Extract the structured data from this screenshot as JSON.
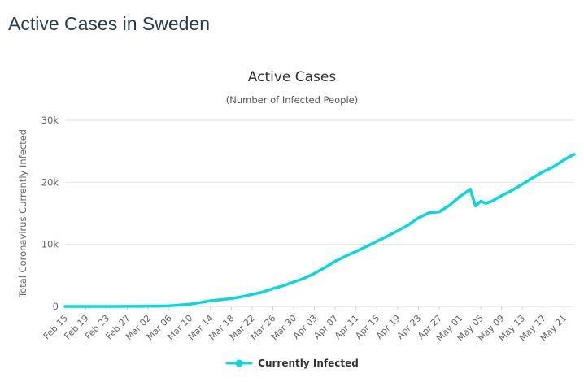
{
  "page": {
    "title": "Active Cases in Sweden"
  },
  "chart": {
    "title": "Active Cases",
    "subtitle": "(Number of Infected People)",
    "y_axis_title": "Total Coronavirus Currently Infected",
    "legend_label": "Currently Infected",
    "colors": {
      "series": "#08d8de",
      "grid": "#e6e6e6",
      "axis_line": "#ccd6eb",
      "axis_text": "#666666",
      "page_title_text": "#2b3b4c",
      "title_text": "#333333",
      "legend_text": "#333333"
    }
  },
  "chart_data": {
    "type": "line",
    "title": "Active Cases",
    "subtitle": "(Number of Infected People)",
    "xlabel": "",
    "ylabel": "Total Coronavirus Currently Infected",
    "ylim": [
      0,
      30000
    ],
    "grid": true,
    "legend_position": "bottom",
    "ytick_values": [
      0,
      10000,
      20000,
      30000
    ],
    "ytick_labels": [
      "0",
      "10k",
      "20k",
      "30k"
    ],
    "xtick_days": [
      0,
      4,
      8,
      12,
      16,
      20,
      24,
      28,
      32,
      36,
      40,
      44,
      48,
      52,
      56,
      60,
      64,
      68,
      72,
      76,
      80,
      84,
      88,
      92,
      96
    ],
    "xtick_labels": [
      "Feb 15",
      "Feb 19",
      "Feb 23",
      "Feb 27",
      "Mar 02",
      "Mar 06",
      "Mar 10",
      "Mar 14",
      "Mar 18",
      "Mar 22",
      "Mar 26",
      "Mar 30",
      "Apr 03",
      "Apr 07",
      "Apr 11",
      "Apr 15",
      "Apr 19",
      "Apr 23",
      "Apr 27",
      "May 01",
      "May 05",
      "May 09",
      "May 13",
      "May 17",
      "May 21"
    ],
    "x_max_day": 98,
    "series": [
      {
        "name": "Currently Infected",
        "color": "#08d8de",
        "days": [
          0,
          2,
          4,
          6,
          8,
          10,
          12,
          14,
          16,
          18,
          20,
          22,
          24,
          26,
          28,
          30,
          32,
          34,
          36,
          38,
          40,
          42,
          44,
          46,
          48,
          50,
          52,
          54,
          56,
          58,
          60,
          62,
          64,
          66,
          68,
          70,
          71,
          72,
          74,
          76,
          77,
          78,
          79,
          80,
          81,
          82,
          84,
          86,
          88,
          90,
          92,
          94,
          96,
          97,
          98
        ],
        "dates": [
          "Feb 15",
          "Feb 17",
          "Feb 19",
          "Feb 21",
          "Feb 23",
          "Feb 25",
          "Feb 27",
          "Feb 29",
          "Mar 02",
          "Mar 04",
          "Mar 06",
          "Mar 08",
          "Mar 10",
          "Mar 12",
          "Mar 14",
          "Mar 16",
          "Mar 18",
          "Mar 20",
          "Mar 22",
          "Mar 24",
          "Mar 26",
          "Mar 28",
          "Mar 30",
          "Apr 01",
          "Apr 03",
          "Apr 05",
          "Apr 07",
          "Apr 09",
          "Apr 11",
          "Apr 13",
          "Apr 15",
          "Apr 17",
          "Apr 19",
          "Apr 21",
          "Apr 23",
          "Apr 25",
          "Apr 26",
          "Apr 27",
          "Apr 29",
          "May 01",
          "May 02",
          "May 03",
          "May 04",
          "May 05",
          "May 06",
          "May 07",
          "May 09",
          "May 11",
          "May 13",
          "May 15",
          "May 17",
          "May 19",
          "May 21",
          "May 22",
          "May 23"
        ],
        "values": [
          1,
          1,
          1,
          1,
          1,
          2,
          10,
          14,
          21,
          52,
          110,
          205,
          355,
          620,
          920,
          1080,
          1260,
          1560,
          1920,
          2300,
          2870,
          3330,
          3940,
          4520,
          5320,
          6250,
          7280,
          8100,
          8850,
          9650,
          10480,
          11300,
          12180,
          13100,
          14250,
          15080,
          15170,
          15250,
          16300,
          17720,
          18280,
          18900,
          16200,
          16950,
          16620,
          16900,
          17840,
          18700,
          19680,
          20720,
          21700,
          22500,
          23600,
          24100,
          24500
        ]
      }
    ]
  }
}
